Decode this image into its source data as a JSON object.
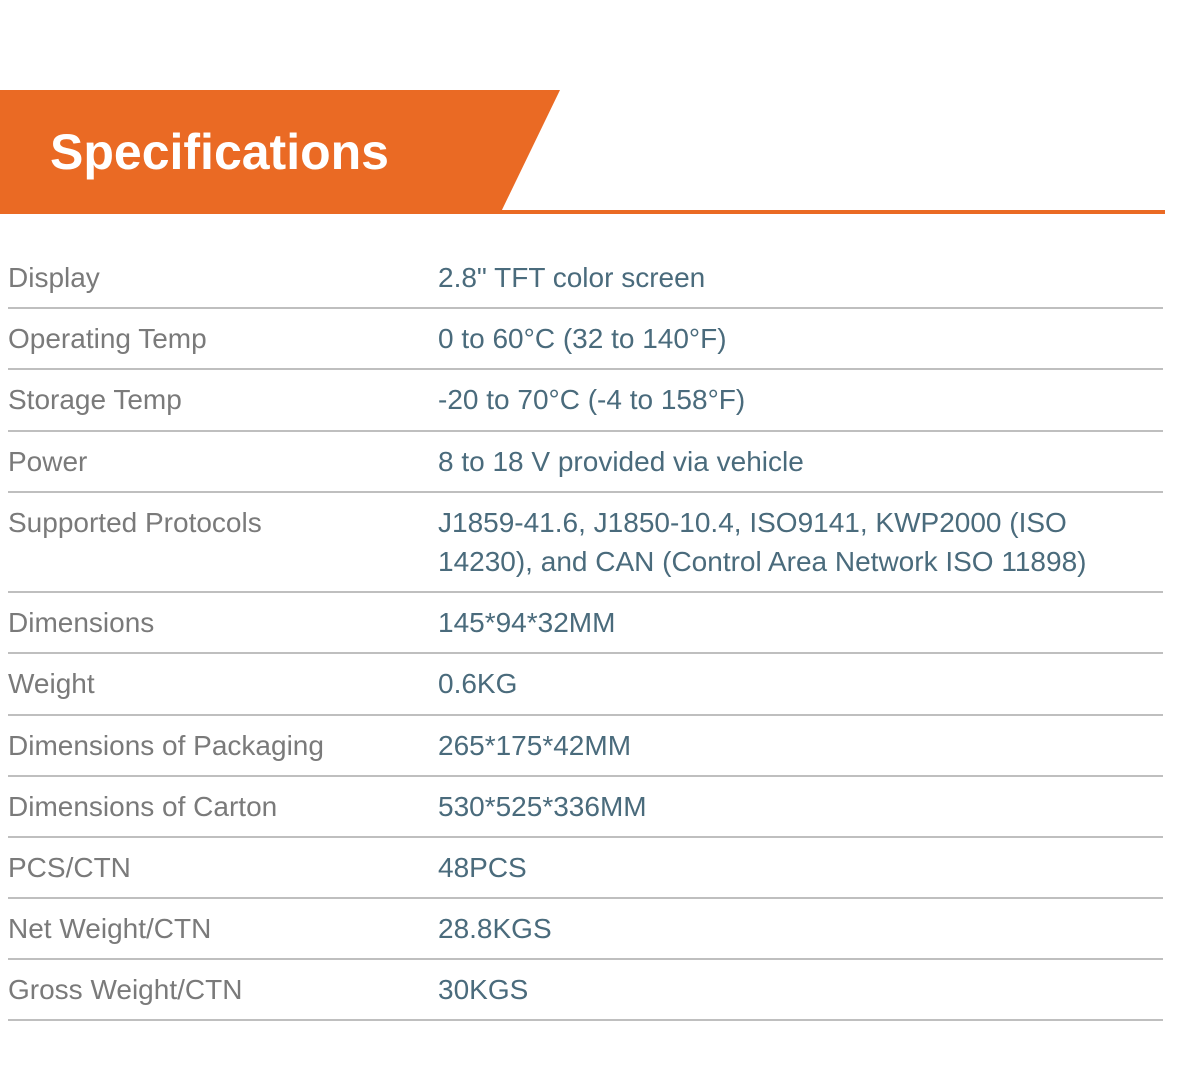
{
  "header": {
    "title": "Specifications",
    "tab_bg_color": "#ea6a24",
    "tab_text_color": "#ffffff",
    "title_fontsize": 50
  },
  "table": {
    "type": "table",
    "label_color": "#7a7a7a",
    "value_color": "#4a6b7c",
    "border_color": "#bfbfbf",
    "fontsize": 28,
    "label_width": 430,
    "columns": [
      "label",
      "value"
    ],
    "rows": [
      {
        "label": "Display",
        "value": "2.8\" TFT color screen"
      },
      {
        "label": "Operating Temp",
        "value": "0 to 60°C (32 to 140°F)"
      },
      {
        "label": "Storage Temp",
        "value": "-20 to 70°C (-4 to 158°F)"
      },
      {
        "label": "Power",
        "value": "8 to 18 V provided via vehicle"
      },
      {
        "label": "Supported Protocols",
        "value": "J1859-41.6, J1850-10.4, ISO9141, KWP2000 (ISO 14230), and CAN (Control Area Network ISO 11898)"
      },
      {
        "label": "Dimensions",
        "value": "145*94*32MM"
      },
      {
        "label": "Weight",
        "value": "0.6KG"
      },
      {
        "label": "Dimensions of Packaging",
        "value": "265*175*42MM"
      },
      {
        "label": "Dimensions of Carton",
        "value": "530*525*336MM"
      },
      {
        "label": "PCS/CTN",
        "value": "48PCS"
      },
      {
        "label": "Net Weight/CTN",
        "value": "28.8KGS"
      },
      {
        "label": "Gross Weight/CTN",
        "value": "30KGS"
      }
    ]
  }
}
